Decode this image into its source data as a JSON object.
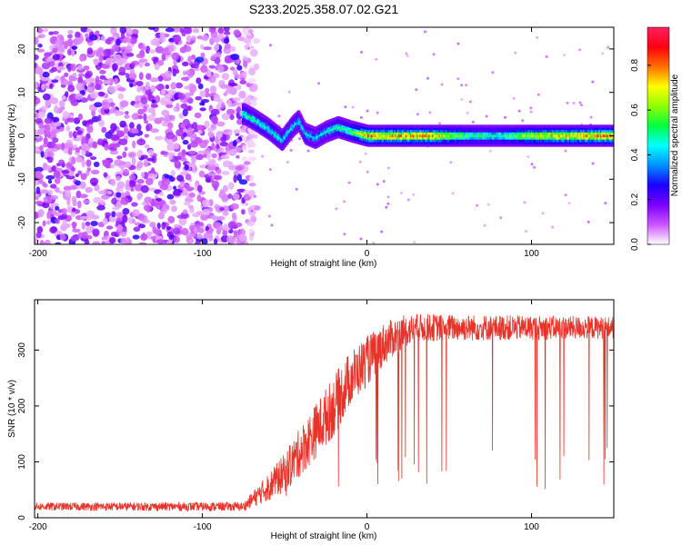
{
  "title": "S233.2025.358.07.02.G21",
  "chart_data": [
    {
      "type": "heatmap",
      "xlabel": "Height of straight line (km)",
      "ylabel": "Frequency (Hz)",
      "xlim": [
        -202,
        150
      ],
      "ylim": [
        -25,
        25
      ],
      "xticks": [
        -200,
        -100,
        0,
        100
      ],
      "yticks": [
        -20,
        -10,
        0,
        10,
        20
      ],
      "colorbar": {
        "label": "Normalized spectral amplitude",
        "range": [
          0,
          0.97
        ],
        "ticks": [
          "0.0",
          "0.2",
          "0.4",
          "0.6",
          "0.8"
        ],
        "tick_values": [
          0,
          0.2,
          0.4,
          0.6,
          0.8
        ],
        "colors": [
          "#ffffff",
          "#cc55ff",
          "#7a00ff",
          "#1a00ff",
          "#0090ff",
          "#00ffff",
          "#00ff40",
          "#90ff00",
          "#ffff00",
          "#ff7000",
          "#ff0010",
          "#ff2060"
        ]
      },
      "noise_region": {
        "x_from": -202,
        "x_to": -75,
        "level": 0.12
      },
      "ridge": {
        "points": [
          [
            -75,
            5
          ],
          [
            -68,
            3.5
          ],
          [
            -60,
            1.5
          ],
          [
            -52,
            -1
          ],
          [
            -46,
            2
          ],
          [
            -42,
            3.5
          ],
          [
            -38,
            0.5
          ],
          [
            -32,
            -0.5
          ],
          [
            -25,
            1
          ],
          [
            -18,
            2
          ],
          [
            -10,
            1
          ],
          [
            0,
            0
          ],
          [
            150,
            0
          ]
        ],
        "amplitude": [
          [
            -75,
            0.5
          ],
          [
            -50,
            0.45
          ],
          [
            -30,
            0.42
          ],
          [
            -10,
            0.55
          ],
          [
            0,
            0.8
          ],
          [
            40,
            0.8
          ],
          [
            60,
            0.55
          ],
          [
            80,
            0.5
          ],
          [
            100,
            0.7
          ],
          [
            150,
            0.85
          ]
        ]
      }
    },
    {
      "type": "line",
      "xlabel": "Height of straight line (km)",
      "ylabel": "SNR (10 * v/v)",
      "xlim": [
        -202,
        150
      ],
      "ylim": [
        0,
        390
      ],
      "xticks": [
        -200,
        -100,
        0,
        100
      ],
      "yticks": [
        0,
        100,
        200,
        300
      ],
      "series": [
        {
          "name": "SNR",
          "color": "#e8332a",
          "envelope": [
            [
              -202,
              20
            ],
            [
              -75,
              20
            ],
            [
              -62,
              50
            ],
            [
              -50,
              80
            ],
            [
              -40,
              120
            ],
            [
              -30,
              160
            ],
            [
              -20,
              200
            ],
            [
              -10,
              250
            ],
            [
              0,
              280
            ],
            [
              10,
              310
            ],
            [
              20,
              330
            ],
            [
              30,
              340
            ],
            [
              150,
              340
            ]
          ],
          "noise_amplitude": [
            [
              -202,
              7
            ],
            [
              -75,
              8
            ],
            [
              -60,
              25
            ],
            [
              -40,
              45
            ],
            [
              -20,
              55
            ],
            [
              0,
              45
            ],
            [
              30,
              25
            ],
            [
              150,
              20
            ]
          ],
          "dropouts_from": 5
        }
      ]
    }
  ]
}
